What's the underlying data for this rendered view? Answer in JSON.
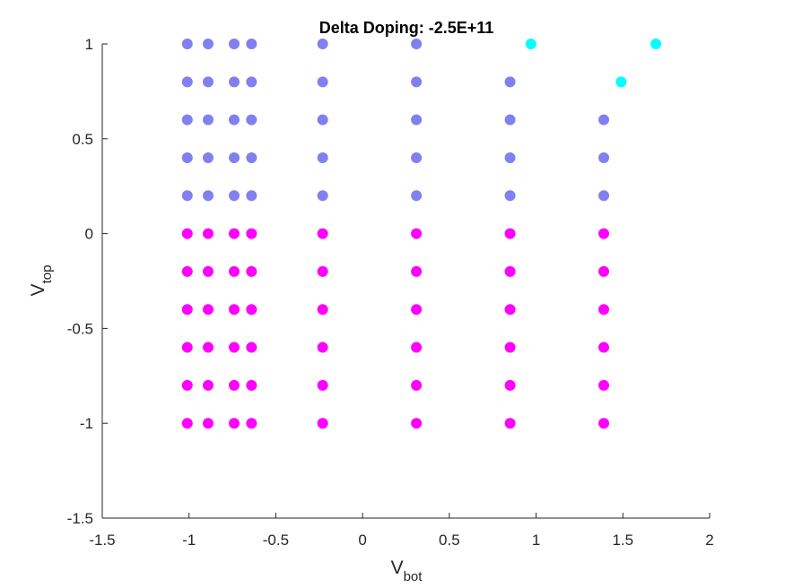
{
  "chart_data": {
    "type": "scatter",
    "title": "Delta Doping: -2.5E+11",
    "xlabel": {
      "main": "V",
      "sub": "bot"
    },
    "ylabel": {
      "main": "V",
      "sub": "top"
    },
    "xlim": [
      -1.5,
      2
    ],
    "ylim": [
      -1.5,
      1
    ],
    "xticks": [
      -1.5,
      -1,
      -0.5,
      0,
      0.5,
      1,
      1.5,
      2
    ],
    "yticks": [
      -1.5,
      -1,
      -0.5,
      0,
      0.5,
      1
    ],
    "xtick_labels": [
      "-1.5",
      "-1",
      "-0.5",
      "0",
      "0.5",
      "1",
      "1.5",
      "2"
    ],
    "ytick_labels": [
      "-1.5",
      "-1",
      "-0.5",
      "0",
      "0.5",
      "1"
    ],
    "grid": false,
    "series": [
      {
        "color": "#8080f0",
        "points": [
          [
            -1.01,
            1.0
          ],
          [
            -0.89,
            1.0
          ],
          [
            -0.74,
            1.0
          ],
          [
            -0.64,
            1.0
          ],
          [
            -0.23,
            1.0
          ],
          [
            0.31,
            1.0
          ],
          [
            -1.01,
            0.8
          ],
          [
            -0.89,
            0.8
          ],
          [
            -0.74,
            0.8
          ],
          [
            -0.64,
            0.8
          ],
          [
            -0.23,
            0.8
          ],
          [
            0.31,
            0.8
          ],
          [
            0.85,
            0.8
          ],
          [
            -1.01,
            0.6
          ],
          [
            -0.89,
            0.6
          ],
          [
            -0.74,
            0.6
          ],
          [
            -0.64,
            0.6
          ],
          [
            -0.23,
            0.6
          ],
          [
            0.31,
            0.6
          ],
          [
            0.85,
            0.6
          ],
          [
            1.39,
            0.6
          ],
          [
            -1.01,
            0.4
          ],
          [
            -0.89,
            0.4
          ],
          [
            -0.74,
            0.4
          ],
          [
            -0.64,
            0.4
          ],
          [
            -0.23,
            0.4
          ],
          [
            0.31,
            0.4
          ],
          [
            0.85,
            0.4
          ],
          [
            1.39,
            0.4
          ],
          [
            -1.01,
            0.2
          ],
          [
            -0.89,
            0.2
          ],
          [
            -0.74,
            0.2
          ],
          [
            -0.64,
            0.2
          ],
          [
            -0.23,
            0.2
          ],
          [
            0.31,
            0.2
          ],
          [
            0.85,
            0.2
          ],
          [
            1.39,
            0.2
          ]
        ]
      },
      {
        "color": "#ff00ff",
        "points": [
          [
            -1.01,
            0.0
          ],
          [
            -0.89,
            0.0
          ],
          [
            -0.74,
            0.0
          ],
          [
            -0.64,
            0.0
          ],
          [
            -0.23,
            0.0
          ],
          [
            0.31,
            0.0
          ],
          [
            0.85,
            0.0
          ],
          [
            1.39,
            0.0
          ],
          [
            -1.01,
            -0.2
          ],
          [
            -0.89,
            -0.2
          ],
          [
            -0.74,
            -0.2
          ],
          [
            -0.64,
            -0.2
          ],
          [
            -0.23,
            -0.2
          ],
          [
            0.31,
            -0.2
          ],
          [
            0.85,
            -0.2
          ],
          [
            1.39,
            -0.2
          ],
          [
            -1.01,
            -0.4
          ],
          [
            -0.89,
            -0.4
          ],
          [
            -0.74,
            -0.4
          ],
          [
            -0.64,
            -0.4
          ],
          [
            -0.23,
            -0.4
          ],
          [
            0.31,
            -0.4
          ],
          [
            0.85,
            -0.4
          ],
          [
            1.39,
            -0.4
          ],
          [
            -1.01,
            -0.6
          ],
          [
            -0.89,
            -0.6
          ],
          [
            -0.74,
            -0.6
          ],
          [
            -0.64,
            -0.6
          ],
          [
            -0.23,
            -0.6
          ],
          [
            0.31,
            -0.6
          ],
          [
            0.85,
            -0.6
          ],
          [
            1.39,
            -0.6
          ],
          [
            -1.01,
            -0.8
          ],
          [
            -0.89,
            -0.8
          ],
          [
            -0.74,
            -0.8
          ],
          [
            -0.64,
            -0.8
          ],
          [
            -0.23,
            -0.8
          ],
          [
            0.31,
            -0.8
          ],
          [
            0.85,
            -0.8
          ],
          [
            1.39,
            -0.8
          ],
          [
            -1.01,
            -1.0
          ],
          [
            -0.89,
            -1.0
          ],
          [
            -0.74,
            -1.0
          ],
          [
            -0.64,
            -1.0
          ],
          [
            -0.23,
            -1.0
          ],
          [
            0.31,
            -1.0
          ],
          [
            0.85,
            -1.0
          ],
          [
            1.39,
            -1.0
          ]
        ]
      },
      {
        "color": "#00ffff",
        "points": [
          [
            0.97,
            1.0
          ],
          [
            1.69,
            1.0
          ],
          [
            1.49,
            0.8
          ]
        ]
      }
    ]
  }
}
